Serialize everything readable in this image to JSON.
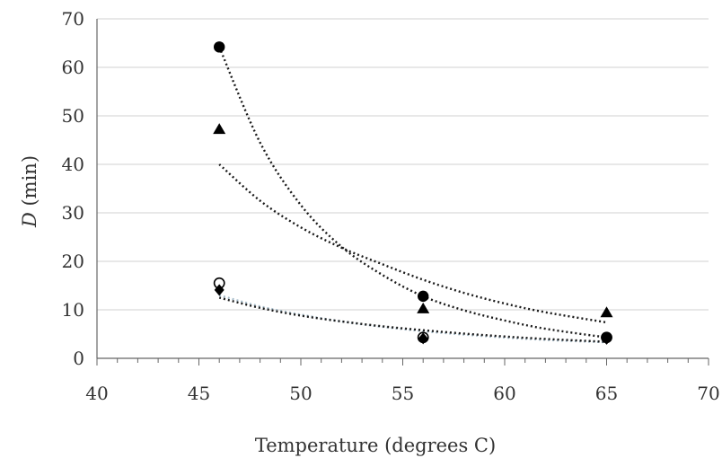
{
  "chart_data": {
    "type": "scatter",
    "xlabel": "Temperature (degrees C)",
    "ylabel_italic": "D",
    "ylabel_rest": " (min)",
    "xlim": [
      40,
      70
    ],
    "ylim": [
      0,
      70
    ],
    "x_ticks": [
      40,
      45,
      50,
      55,
      60,
      65,
      70
    ],
    "y_ticks": [
      0,
      10,
      20,
      30,
      40,
      50,
      60,
      70
    ],
    "grid": "horizontal",
    "series": [
      {
        "marker": "filled-circle",
        "x": [
          46,
          56,
          65
        ],
        "y": [
          64.2,
          12.8,
          4.3
        ]
      },
      {
        "marker": "filled-triangle",
        "x": [
          46,
          56,
          65
        ],
        "y": [
          47.2,
          10.2,
          9.4
        ]
      },
      {
        "marker": "open-circle",
        "x": [
          46,
          56,
          65
        ],
        "y": [
          15.5,
          4.3,
          4.3
        ]
      },
      {
        "marker": "filled-diamond",
        "x": [
          46,
          56,
          65
        ],
        "y": [
          14.1,
          4.1,
          4.0
        ]
      }
    ],
    "trendlines": [
      {
        "color": "#1a1a1a",
        "x": [
          46,
          48,
          50,
          52,
          54,
          56,
          58,
          60,
          62,
          65
        ],
        "y": [
          64.2,
          44.5,
          31.6,
          23.0,
          17.2,
          12.8,
          9.9,
          7.8,
          6.1,
          4.3
        ]
      },
      {
        "color": "#1a1a1a",
        "x": [
          46,
          48,
          50,
          52,
          54,
          56,
          58,
          60,
          62,
          65
        ],
        "y": [
          40.0,
          32.5,
          27.0,
          22.8,
          19.4,
          16.2,
          13.5,
          11.3,
          9.5,
          7.4
        ]
      },
      {
        "color": "#a7bcc9",
        "x": [
          46,
          48,
          50,
          52,
          54,
          56,
          58,
          60,
          62,
          65
        ],
        "y": [
          13.0,
          10.7,
          9.0,
          7.6,
          6.5,
          5.6,
          4.9,
          4.3,
          3.8,
          3.3
        ]
      },
      {
        "color": "#1a1a1a",
        "x": [
          46,
          48,
          50,
          52,
          54,
          56,
          58,
          60,
          62,
          65
        ],
        "y": [
          12.5,
          10.4,
          8.8,
          7.6,
          6.6,
          5.8,
          5.1,
          4.5,
          4.0,
          3.4
        ]
      }
    ]
  }
}
